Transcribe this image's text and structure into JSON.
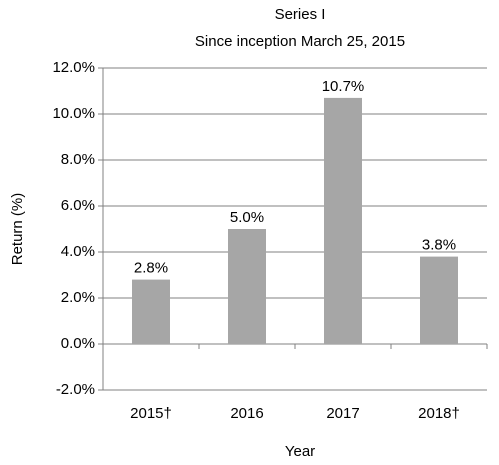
{
  "chart_data": {
    "type": "bar",
    "title": "Series I",
    "subtitle": "Since inception March 25, 2015",
    "x_label": "Year",
    "y_label": "Return (%)",
    "categories": [
      "2015†",
      "2016",
      "2017",
      "2018†"
    ],
    "values": [
      2.8,
      5.0,
      10.7,
      3.8
    ],
    "value_labels": [
      "2.8%",
      "5.0%",
      "10.7%",
      "3.8%"
    ],
    "color": "#a6a6a6",
    "ylim": [
      -2,
      12
    ],
    "yticks": [
      {
        "value": -2,
        "label": "-2.0%"
      },
      {
        "value": 0,
        "label": "0.0%"
      },
      {
        "value": 2,
        "label": "2.0%"
      },
      {
        "value": 4,
        "label": "4.0%"
      },
      {
        "value": 6,
        "label": "6.0%"
      },
      {
        "value": 8,
        "label": "8.0%"
      },
      {
        "value": 10,
        "label": "10.0%"
      },
      {
        "value": 12,
        "label": "12.0%"
      }
    ],
    "grid": true
  }
}
